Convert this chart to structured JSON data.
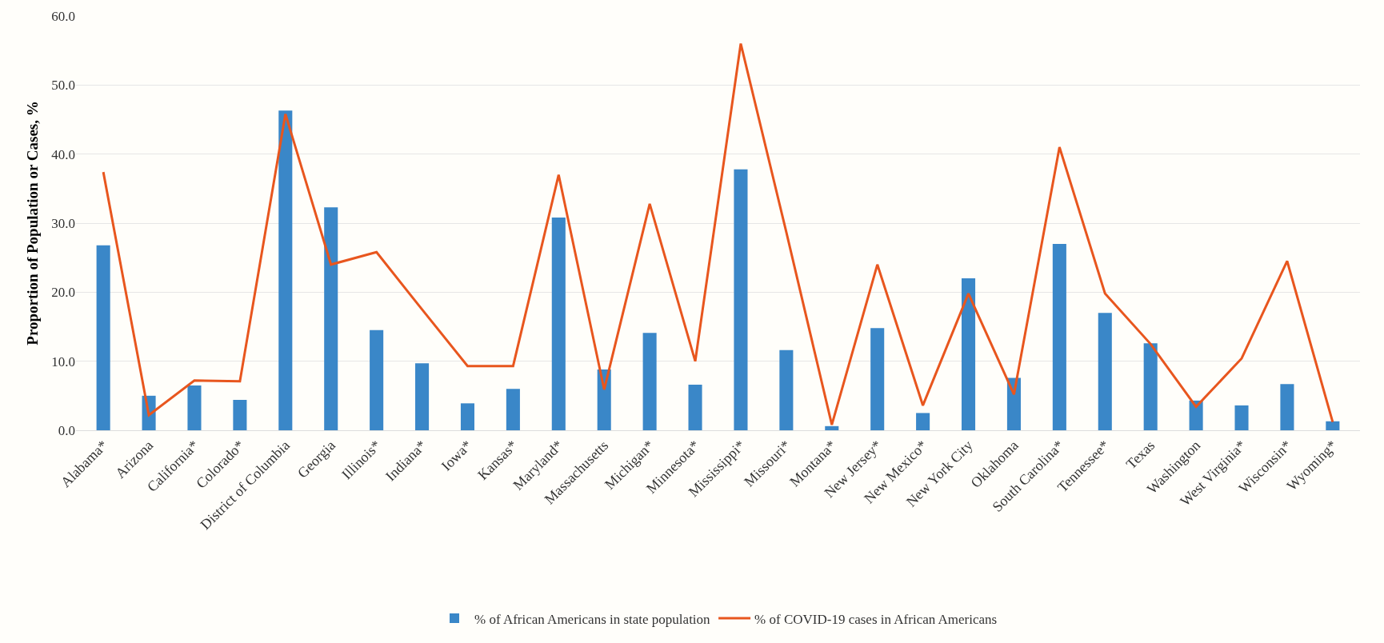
{
  "chart_data": {
    "type": "bar",
    "ylabel": "Proportion of Population or Cases, %",
    "categories": [
      "Alabama*",
      "Arizona",
      "California*",
      "Colorado*",
      "District of Columbia",
      "Georgia",
      "Illinois*",
      "Indiana*",
      "Iowa*",
      "Kansas*",
      "Maryland*",
      "Massachusetts",
      "Michigan*",
      "Minnesota*",
      "Mississippi*",
      "Missouri*",
      "Montana*",
      "New Jersey*",
      "New Mexico*",
      "New York City",
      "Oklahoma",
      "South Carolina*",
      "Tennessee*",
      "Texas",
      "Washington",
      "West Virginia*",
      "Wisconsin*",
      "Wyoming*"
    ],
    "series": [
      {
        "name": "% of African Americans in state population",
        "color": "#3a87c8",
        "values": [
          26.8,
          5.0,
          6.5,
          4.4,
          46.3,
          32.3,
          14.5,
          9.7,
          3.9,
          6.0,
          30.8,
          8.8,
          14.1,
          6.6,
          37.8,
          11.6,
          0.6,
          14.8,
          2.5,
          22.0,
          7.6,
          27.0,
          17.0,
          12.6,
          4.3,
          3.6,
          6.7,
          1.3
        ]
      },
      {
        "name": "% of COVID-19 cases in African Americans",
        "type": "line",
        "color": "#e8561e",
        "values": [
          37.4,
          2.2,
          7.2,
          7.1,
          45.8,
          24.0,
          25.8,
          17.5,
          9.3,
          9.3,
          37.0,
          5.9,
          32.8,
          10.0,
          56.0,
          28.7,
          0.8,
          24.0,
          3.6,
          19.8,
          5.2,
          41.0,
          19.8,
          12.5,
          3.4,
          10.4,
          24.5,
          1.2
        ]
      }
    ],
    "ylim": [
      0,
      60
    ],
    "yticks": [
      {
        "value": 0,
        "label": "0.0"
      },
      {
        "value": 10,
        "label": "10.0"
      },
      {
        "value": 20,
        "label": "20.0"
      },
      {
        "value": 30,
        "label": "30.0"
      },
      {
        "value": 40,
        "label": "40.0"
      },
      {
        "value": 50,
        "label": "50.0"
      },
      {
        "value": 60,
        "label": "60.0"
      }
    ],
    "grid": "y",
    "legend": "bottom",
    "marker": "none",
    "line_style": "solid"
  }
}
